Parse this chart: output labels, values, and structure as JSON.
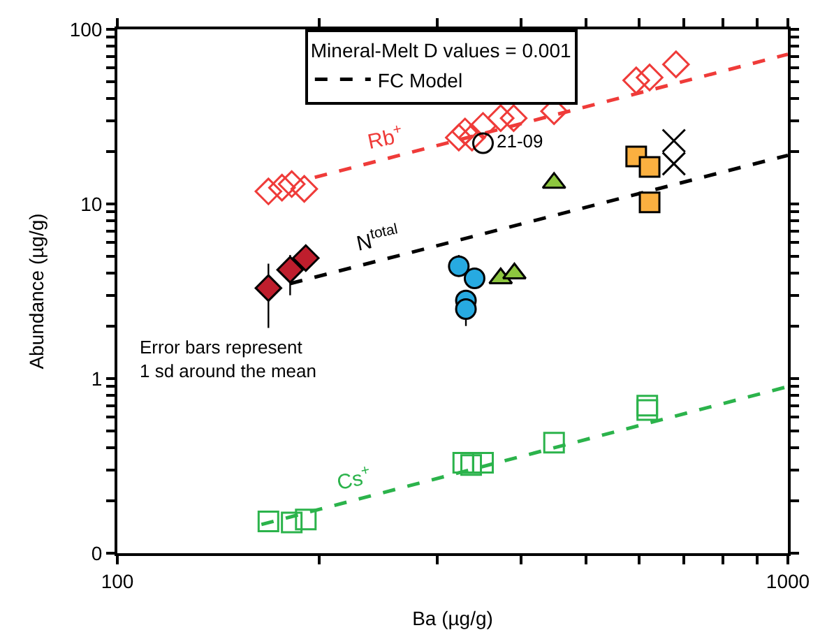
{
  "chart_data": {
    "type": "scatter",
    "xlabel": "Ba (µg/g)",
    "ylabel": "Abundance (µg/g)",
    "legend_title": "Mineral-Melt D values = 0.001",
    "legend": "top left",
    "log": "xy",
    "xlim": [
      100,
      1000
    ],
    "xticks": [
      100,
      {
        "value": 200,
        "label": null
      },
      {
        "value": 300,
        "label": null
      },
      {
        "value": 400,
        "label": null
      },
      {
        "value": 500,
        "label": null
      },
      {
        "value": 600,
        "label": null
      },
      {
        "value": 700,
        "label": null
      },
      {
        "value": 800,
        "label": null
      },
      {
        "value": 900,
        "label": null
      },
      1000
    ],
    "ylim": [
      0.1,
      100
    ],
    "yticks": [
      {
        "value": 0.1,
        "label": "0"
      },
      {
        "value": 0.2,
        "label": null
      },
      {
        "value": 0.3,
        "label": null
      },
      {
        "value": 0.4,
        "label": null
      },
      {
        "value": 0.5,
        "label": null
      },
      {
        "value": 0.6,
        "label": null
      },
      {
        "value": 0.7,
        "label": null
      },
      {
        "value": 0.8,
        "label": null
      },
      {
        "value": 0.9,
        "label": null
      },
      1,
      {
        "value": 2,
        "label": null
      },
      {
        "value": 3,
        "label": null
      },
      {
        "value": 4,
        "label": null
      },
      {
        "value": 5,
        "label": null
      },
      {
        "value": 6,
        "label": null
      },
      {
        "value": 7,
        "label": null
      },
      {
        "value": 8,
        "label": null
      },
      {
        "value": 9,
        "label": null
      },
      10,
      {
        "value": 20,
        "label": null
      },
      {
        "value": 30,
        "label": null
      },
      {
        "value": 40,
        "label": null
      },
      {
        "value": 50,
        "label": null
      },
      {
        "value": 60,
        "label": null
      },
      {
        "value": 70,
        "label": null
      },
      {
        "value": 80,
        "label": null
      },
      {
        "value": 90,
        "label": null
      },
      100
    ],
    "annotations": [
      {
        "text": "Rb$^{+}$",
        "x": 250,
        "y": 18
      },
      {
        "text": "N$^{total}$",
        "x": 245,
        "y": 4.7
      },
      {
        "text": "Cs$^{+}$",
        "x": 225,
        "y": 0.2
      },
      "Error bars represent\n1 sd around the mean"
    ],
    "series": [
      {
        "type": "line",
        "color": "#ef3b39",
        "line_style": "dashed",
        "marker": "none",
        "x": [
          197,
          1000
        ],
        "values": [
          14.2,
          72
        ]
      },
      {
        "type": "line",
        "name": "FC Model",
        "color": "#000000",
        "line_style": "dashed",
        "marker": "none",
        "x": [
          181,
          1000
        ],
        "values": [
          3.5,
          19
        ]
      },
      {
        "type": "line",
        "color": "#2bb34b",
        "line_style": "dashed",
        "marker": "none",
        "x": [
          164,
          1000
        ],
        "values": [
          0.146,
          0.9
        ]
      },
      {
        "color": "#ef3b39",
        "marker": "diamond-open",
        "x": [
          168,
          176,
          182,
          190,
          323,
          330,
          338,
          351,
          373,
          390,
          448,
          594,
          622,
          681
        ],
        "values": [
          11.8,
          12.4,
          13,
          12.2,
          24,
          26,
          24,
          28,
          31,
          31,
          34,
          51,
          53,
          63
        ]
      },
      {
        "name": "21-09",
        "color": "#000000",
        "marker": "circle-open",
        "x": [
          351
        ],
        "values": [
          22.3
        ]
      },
      {
        "color": "#be1e2d",
        "marker": "diamond",
        "x": [
          168,
          181,
          191
        ],
        "values": [
          3.3,
          4.2,
          4.9
        ],
        "errors": [
          [
            1.95,
            4.55
          ],
          [
            3.0,
            5.1
          ],
          null
        ]
      },
      {
        "color": "#27aae1",
        "marker": "circle",
        "x": [
          323,
          341,
          331,
          331
        ],
        "values": [
          4.4,
          3.75,
          2.8,
          2.5
        ],
        "errors": [
          [
            3.9,
            5.1
          ],
          [
            3.3,
            4.3
          ],
          null,
          [
            2.0,
            2.9
          ]
        ]
      },
      {
        "color": "#8dc63f",
        "marker": "triangle",
        "x": [
          373,
          391,
          448
        ],
        "values": [
          3.75,
          4.0,
          13.2
        ]
      },
      {
        "color": "#fbb040",
        "marker": "square",
        "x": [
          594,
          622,
          622
        ],
        "values": [
          18.7,
          16.3,
          10.2
        ]
      },
      {
        "color": "#000000",
        "marker": "cross",
        "x": [
          676,
          676
        ],
        "values": [
          23,
          17
        ]
      },
      {
        "color": "#2bb34b",
        "marker": "square-open",
        "x": [
          168,
          182,
          191,
          328,
          337,
          351,
          448,
          617,
          617
        ],
        "values": [
          0.152,
          0.15,
          0.156,
          0.33,
          0.32,
          0.33,
          0.43,
          0.7,
          0.66
        ]
      }
    ]
  }
}
